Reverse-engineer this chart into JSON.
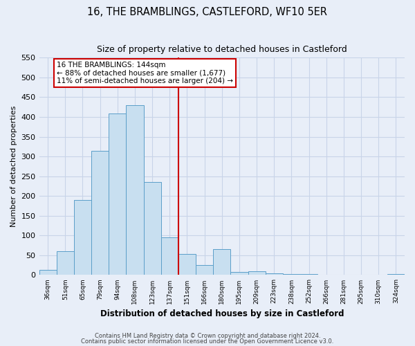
{
  "title": "16, THE BRAMBLINGS, CASTLEFORD, WF10 5ER",
  "subtitle": "Size of property relative to detached houses in Castleford",
  "xlabel": "Distribution of detached houses by size in Castleford",
  "ylabel": "Number of detached properties",
  "categories": [
    "36sqm",
    "51sqm",
    "65sqm",
    "79sqm",
    "94sqm",
    "108sqm",
    "123sqm",
    "137sqm",
    "151sqm",
    "166sqm",
    "180sqm",
    "195sqm",
    "209sqm",
    "223sqm",
    "238sqm",
    "252sqm",
    "266sqm",
    "281sqm",
    "295sqm",
    "310sqm",
    "324sqm"
  ],
  "values": [
    13,
    60,
    190,
    315,
    408,
    430,
    235,
    95,
    53,
    25,
    65,
    8,
    10,
    5,
    2,
    2,
    1,
    1,
    1,
    1,
    2
  ],
  "bar_color": "#c8dff0",
  "bar_edgecolor": "#5b9ec9",
  "vline_x": 7.5,
  "vline_color": "#cc0000",
  "annotation_title": "16 THE BRAMBLINGS: 144sqm",
  "annotation_line1": "← 88% of detached houses are smaller (1,677)",
  "annotation_line2": "11% of semi-detached houses are larger (204) →",
  "annotation_box_color": "#ffffff",
  "annotation_box_edgecolor": "#cc0000",
  "ylim": [
    0,
    550
  ],
  "yticks": [
    0,
    50,
    100,
    150,
    200,
    250,
    300,
    350,
    400,
    450,
    500,
    550
  ],
  "footnote1": "Contains HM Land Registry data © Crown copyright and database right 2024.",
  "footnote2": "Contains public sector information licensed under the Open Government Licence v3.0.",
  "background_color": "#e8eef8"
}
